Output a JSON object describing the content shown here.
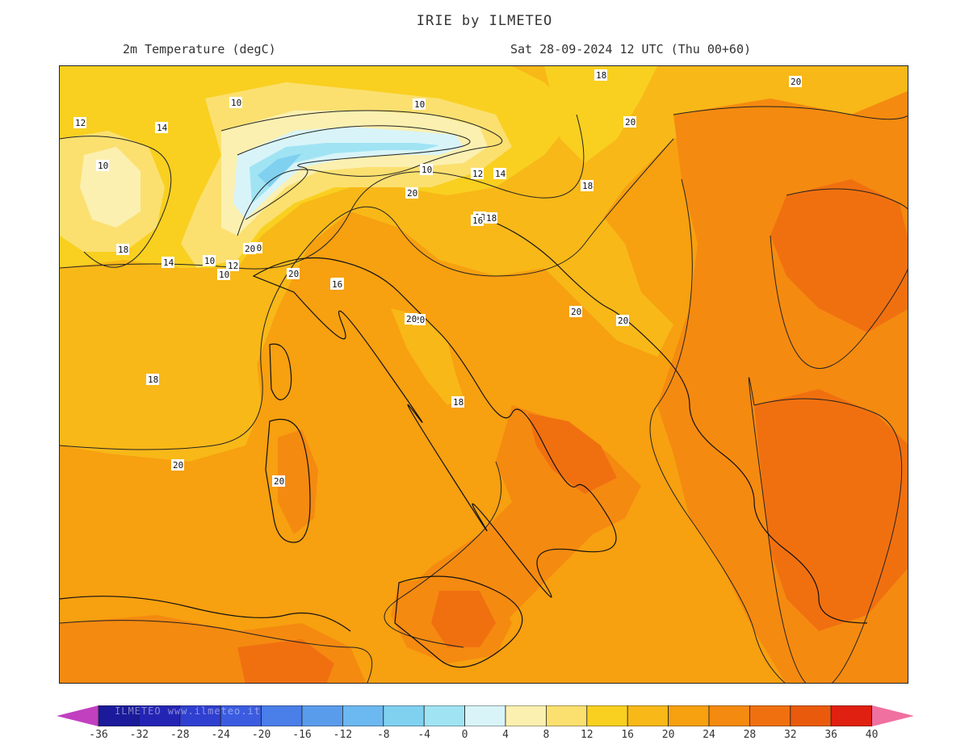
{
  "header": {
    "title": "IRIE by ILMETEO",
    "variable": "2m Temperature (degC)",
    "valid_time": "Sat 28-09-2024 12 UTC (Thu 00+60)"
  },
  "colorbar": {
    "ticks": [
      "-36",
      "-32",
      "-28",
      "-24",
      "-20",
      "-16",
      "-12",
      "-8",
      "-4",
      "0",
      "4",
      "8",
      "12",
      "16",
      "20",
      "24",
      "28",
      "32",
      "36",
      "40"
    ],
    "colors": [
      "#1a1a9a",
      "#2424b4",
      "#2f3fd0",
      "#3b5ce0",
      "#4a7ee8",
      "#5a9cec",
      "#6cb8f0",
      "#80d0f0",
      "#a0e4f4",
      "#d8f4f8",
      "#fbf0b0",
      "#fbe070",
      "#f9d020",
      "#f8b818",
      "#f7a010",
      "#f58a10",
      "#f07010",
      "#ea5a0c",
      "#e02010"
    ],
    "under_color": "#c040c0",
    "over_color": "#f070a0",
    "watermark": "ILMETEO www.ilmeteo.it"
  },
  "map": {
    "contour_labels": [
      "12",
      "14",
      "10",
      "10",
      "10",
      "10",
      "12",
      "14",
      "10",
      "18",
      "18",
      "20",
      "20",
      "20",
      "18",
      "14",
      "10",
      "12",
      "20",
      "20",
      "18",
      "20",
      "18",
      "20",
      "20",
      "18",
      "18",
      "20",
      "20",
      "20",
      "16",
      "18",
      "20",
      "16"
    ]
  }
}
